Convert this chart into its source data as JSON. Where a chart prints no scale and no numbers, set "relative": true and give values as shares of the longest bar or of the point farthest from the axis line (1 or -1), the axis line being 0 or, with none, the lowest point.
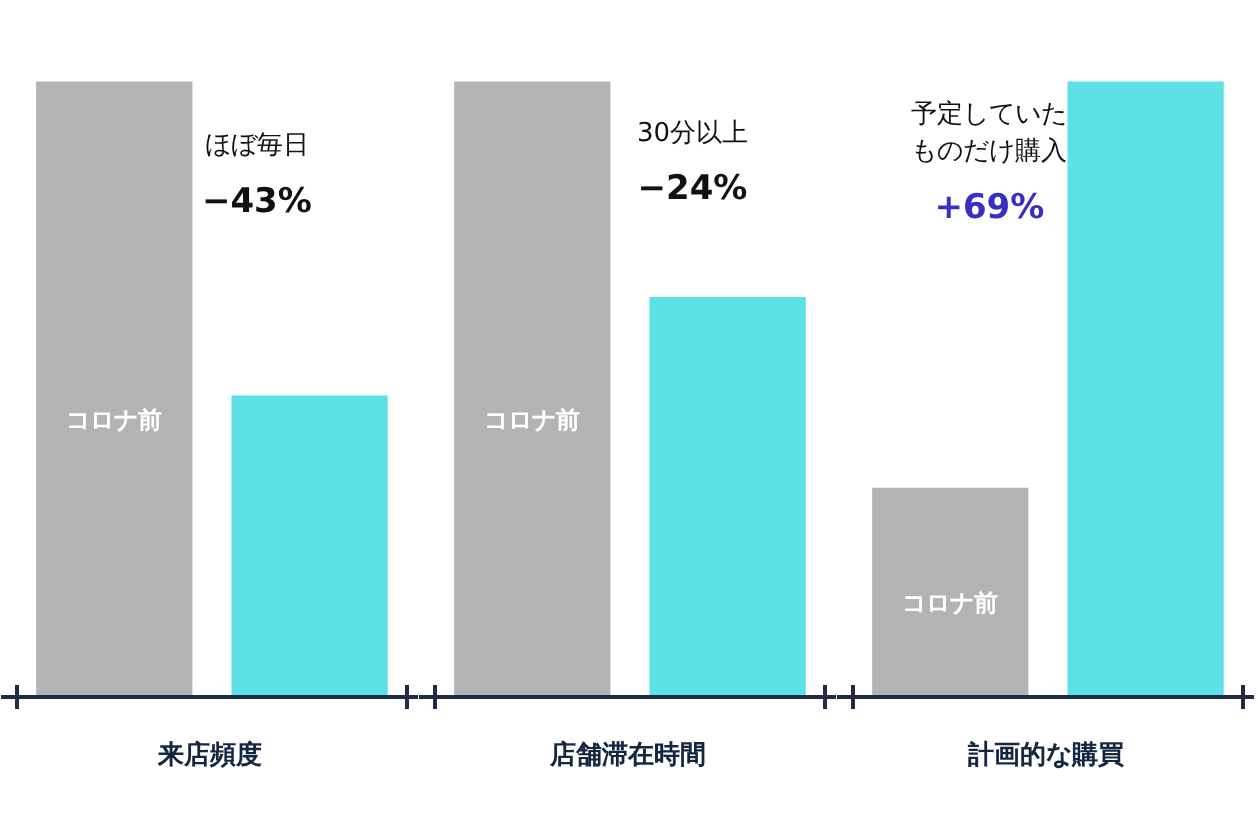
{
  "chart_data": [
    {
      "type": "bar",
      "relative": true,
      "categories": [
        null,
        null
      ],
      "values": [
        1,
        0.49
      ],
      "colors": [
        "#b3b3b3",
        "#5ce1e6"
      ],
      "xlabel": "来店頻度",
      "annotations": [
        "コロナ前",
        "ほぼ毎日",
        "−43%"
      ]
    },
    {
      "type": "bar",
      "relative": true,
      "categories": [
        null,
        null
      ],
      "values": [
        1,
        0.65
      ],
      "colors": [
        "#b3b3b3",
        "#5ce1e6"
      ],
      "xlabel": "店舗滞在時間",
      "annotations": [
        "コロナ前",
        "30分以上",
        "−24%"
      ]
    },
    {
      "type": "bar",
      "relative": true,
      "categories": [
        null,
        null
      ],
      "values": [
        0.34,
        1
      ],
      "colors": [
        "#b3b3b3",
        "#5ce1e6"
      ],
      "xlabel": "計画的な購買",
      "annotations": [
        "コロナ前",
        "予定していた",
        "ものだけ購入",
        "+69%"
      ]
    }
  ]
}
